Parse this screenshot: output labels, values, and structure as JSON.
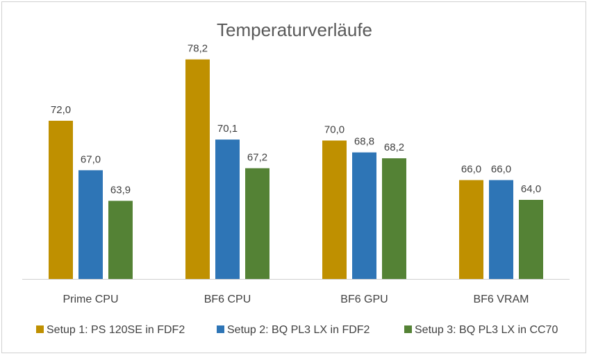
{
  "chart_data": {
    "type": "bar",
    "title": "Temperaturverläufe",
    "categories": [
      "Prime CPU",
      "BF6 CPU",
      "BF6 GPU",
      "BF6 VRAM"
    ],
    "series": [
      {
        "name": "Setup 1: PS 120SE in FDF2",
        "color": "#bf9000",
        "values": [
          72.0,
          78.2,
          70.0,
          66.0
        ],
        "labels": [
          "72,0",
          "78,2",
          "70,0",
          "66,0"
        ]
      },
      {
        "name": "Setup 2: BQ PL3 LX in FDF2",
        "color": "#2e75b6",
        "values": [
          67.0,
          70.1,
          68.8,
          66.0
        ],
        "labels": [
          "67,0",
          "70,1",
          "68,8",
          "66,0"
        ]
      },
      {
        "name": "Setup 3: BQ PL3 LX in CC70",
        "color": "#548235",
        "values": [
          63.9,
          67.2,
          68.2,
          64.0
        ],
        "labels": [
          "63,9",
          "67,2",
          "68,2",
          "64,0"
        ]
      }
    ],
    "ylim": [
      56,
      80
    ],
    "grid": false,
    "legend_position": "bottom"
  }
}
